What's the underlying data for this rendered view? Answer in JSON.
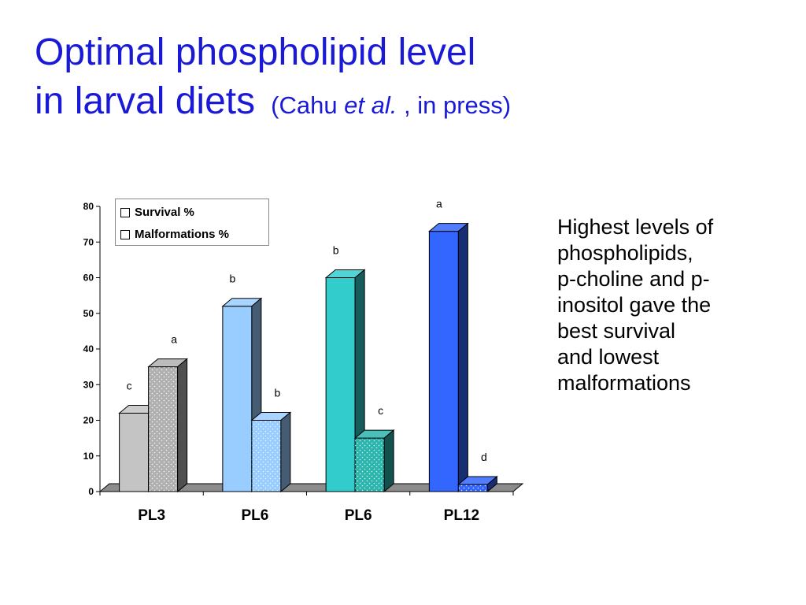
{
  "slide": {
    "title_line1": "Optimal phospholipid level",
    "title_line2": "in larval diets",
    "citation_pre": "(Cahu ",
    "citation_italic": "et al.",
    "citation_post": " , in press)",
    "bullet_lines": [
      "Highest levels of",
      "phospholipids,",
      "p-choline and p-",
      "inositol gave the",
      "best survival",
      "and lowest",
      "malformations"
    ]
  },
  "chart_data": {
    "type": "bar",
    "categories": [
      "PL3",
      "PL6",
      "PL6",
      "PL12"
    ],
    "series": [
      {
        "name": "Survival %",
        "values": [
          22,
          52,
          60,
          73
        ],
        "labels": [
          "c",
          "b",
          "b",
          "a"
        ],
        "colors": [
          "#c4c4c4",
          "#99ccff",
          "#33cccc",
          "#3366ff"
        ]
      },
      {
        "name": "Malformations %",
        "values": [
          35,
          20,
          15,
          2
        ],
        "labels": [
          "a",
          "b",
          "c",
          "d"
        ],
        "colors": [
          "#b0b0b0",
          "#99ccff",
          "#2ab5ad",
          "#3366ff"
        ]
      }
    ],
    "ylim": [
      0,
      80
    ],
    "yticks": [
      0,
      10,
      20,
      30,
      40,
      50,
      60,
      70,
      80
    ],
    "legend_position": "top-left",
    "grid": false
  }
}
